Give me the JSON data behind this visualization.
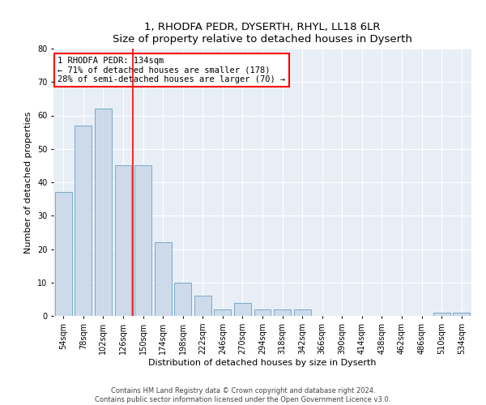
{
  "title": "1, RHODFA PEDR, DYSERTH, RHYL, LL18 6LR",
  "subtitle": "Size of property relative to detached houses in Dyserth",
  "xlabel": "Distribution of detached houses by size in Dyserth",
  "ylabel": "Number of detached properties",
  "footer1": "Contains HM Land Registry data © Crown copyright and database right 2024.",
  "footer2": "Contains public sector information licensed under the Open Government Licence v3.0.",
  "annotation_line1": "1 RHODFA PEDR: 134sqm",
  "annotation_line2": "← 71% of detached houses are smaller (178)",
  "annotation_line3": "28% of semi-detached houses are larger (70) →",
  "bar_color": "#ccdaea",
  "bar_edge_color": "#7aaac8",
  "vline_color": "red",
  "background_color": "#e8eef6",
  "categories": [
    "54sqm",
    "78sqm",
    "102sqm",
    "126sqm",
    "150sqm",
    "174sqm",
    "198sqm",
    "222sqm",
    "246sqm",
    "270sqm",
    "294sqm",
    "318sqm",
    "342sqm",
    "366sqm",
    "390sqm",
    "414sqm",
    "438sqm",
    "462sqm",
    "486sqm",
    "510sqm",
    "534sqm"
  ],
  "values": [
    37,
    57,
    62,
    45,
    45,
    22,
    10,
    6,
    2,
    4,
    2,
    2,
    2,
    0,
    0,
    0,
    0,
    0,
    0,
    1,
    1
  ],
  "ylim": [
    0,
    80
  ],
  "yticks": [
    0,
    10,
    20,
    30,
    40,
    50,
    60,
    70,
    80
  ],
  "vline_position": 3.5,
  "title_fontsize": 9.5,
  "xlabel_fontsize": 8,
  "ylabel_fontsize": 8,
  "tick_fontsize": 7,
  "annotation_fontsize": 7.5,
  "footer_fontsize": 6.0
}
